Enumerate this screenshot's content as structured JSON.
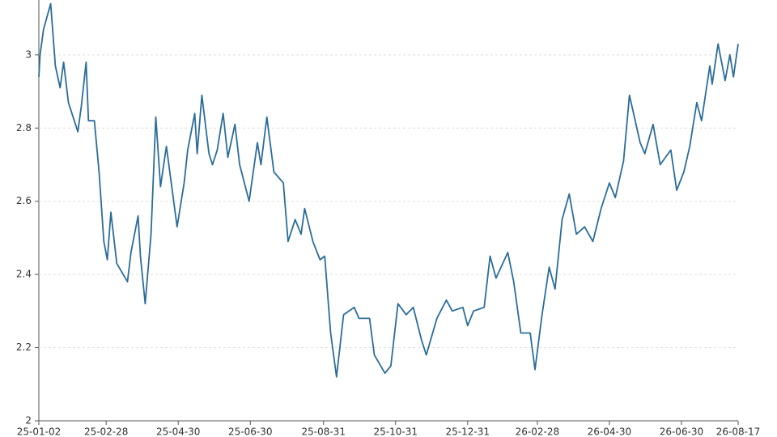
{
  "chart_data": {
    "type": "line",
    "x": [
      "25-01-02",
      "25-01-03",
      "25-01-06",
      "25-01-12",
      "25-01-16",
      "25-01-20",
      "25-01-23",
      "25-01-27",
      "25-02-04",
      "25-02-07",
      "25-02-11",
      "25-02-13",
      "25-02-18",
      "25-02-22",
      "25-02-26",
      "25-03-01",
      "25-03-04",
      "25-03-09",
      "25-03-18",
      "25-03-21",
      "25-03-27",
      "25-03-29",
      "25-04-02",
      "25-04-07",
      "25-04-11",
      "25-04-15",
      "25-04-20",
      "25-04-29",
      "25-05-05",
      "25-05-08",
      "25-05-14",
      "25-05-16",
      "25-05-20",
      "25-05-26",
      "25-05-29",
      "25-06-02",
      "25-06-07",
      "25-06-11",
      "25-06-17",
      "25-06-21",
      "25-06-29",
      "25-07-06",
      "25-07-09",
      "25-07-14",
      "25-07-20",
      "25-07-28",
      "25-08-01",
      "25-08-07",
      "25-08-12",
      "25-08-15",
      "25-08-22",
      "25-08-28",
      "25-09-01",
      "25-09-06",
      "25-09-11",
      "25-09-17",
      "25-09-26",
      "25-09-30",
      "25-10-09",
      "25-10-13",
      "25-10-22",
      "25-10-27",
      "25-11-02",
      "25-11-09",
      "25-11-15",
      "25-11-22",
      "25-11-26",
      "25-12-05",
      "25-12-13",
      "25-12-18",
      "25-12-27",
      "25-12-31",
      "26-01-05",
      "26-01-14",
      "26-01-19",
      "26-01-24",
      "26-02-03",
      "26-02-08",
      "26-02-14",
      "26-02-22",
      "26-02-26",
      "26-03-04",
      "26-03-10",
      "26-03-15",
      "26-03-21",
      "26-03-27",
      "26-04-02",
      "26-04-09",
      "26-04-16",
      "26-04-23",
      "26-04-30",
      "26-05-05",
      "26-05-12",
      "26-05-17",
      "26-05-26",
      "26-05-30",
      "26-06-06",
      "26-06-12",
      "26-06-21",
      "26-06-26",
      "26-07-02",
      "26-07-07",
      "26-07-13",
      "26-07-17",
      "26-07-24",
      "26-07-26",
      "26-07-31",
      "26-08-06",
      "26-08-10",
      "26-08-13",
      "26-08-17"
    ],
    "series": [
      {
        "color": "#2b6d99",
        "values": [
          2.94,
          3.0,
          3.07,
          3.14,
          2.97,
          2.91,
          2.98,
          2.87,
          2.79,
          2.86,
          2.98,
          2.82,
          2.82,
          2.68,
          2.49,
          2.44,
          2.57,
          2.43,
          2.38,
          2.46,
          2.56,
          2.45,
          2.32,
          2.51,
          2.83,
          2.64,
          2.75,
          2.53,
          2.65,
          2.74,
          2.84,
          2.73,
          2.89,
          2.73,
          2.7,
          2.74,
          2.84,
          2.72,
          2.81,
          2.7,
          2.6,
          2.76,
          2.7,
          2.83,
          2.68,
          2.65,
          2.49,
          2.55,
          2.51,
          2.58,
          2.49,
          2.44,
          2.45,
          2.24,
          2.12,
          2.29,
          2.31,
          2.28,
          2.28,
          2.18,
          2.13,
          2.15,
          2.32,
          2.29,
          2.31,
          2.22,
          2.18,
          2.28,
          2.33,
          2.3,
          2.31,
          2.26,
          2.3,
          2.31,
          2.45,
          2.39,
          2.46,
          2.38,
          2.24,
          2.24,
          2.14,
          2.29,
          2.42,
          2.36,
          2.55,
          2.62,
          2.51,
          2.53,
          2.49,
          2.58,
          2.65,
          2.61,
          2.71,
          2.89,
          2.76,
          2.73,
          2.81,
          2.7,
          2.74,
          2.63,
          2.68,
          2.75,
          2.87,
          2.82,
          2.97,
          2.92,
          3.03,
          2.93,
          3.0,
          2.94,
          3.03
        ]
      }
    ],
    "xticks": [
      "25-01-02",
      "25-02-28",
      "25-04-30",
      "25-06-30",
      "25-08-31",
      "25-10-31",
      "25-12-31",
      "26-02-28",
      "26-04-30",
      "26-06-30",
      "26-08-17"
    ],
    "ylim": [
      2,
      3.15
    ],
    "yticks": [
      2,
      2.2,
      2.4,
      2.6,
      2.8,
      3
    ],
    "grid": true
  }
}
